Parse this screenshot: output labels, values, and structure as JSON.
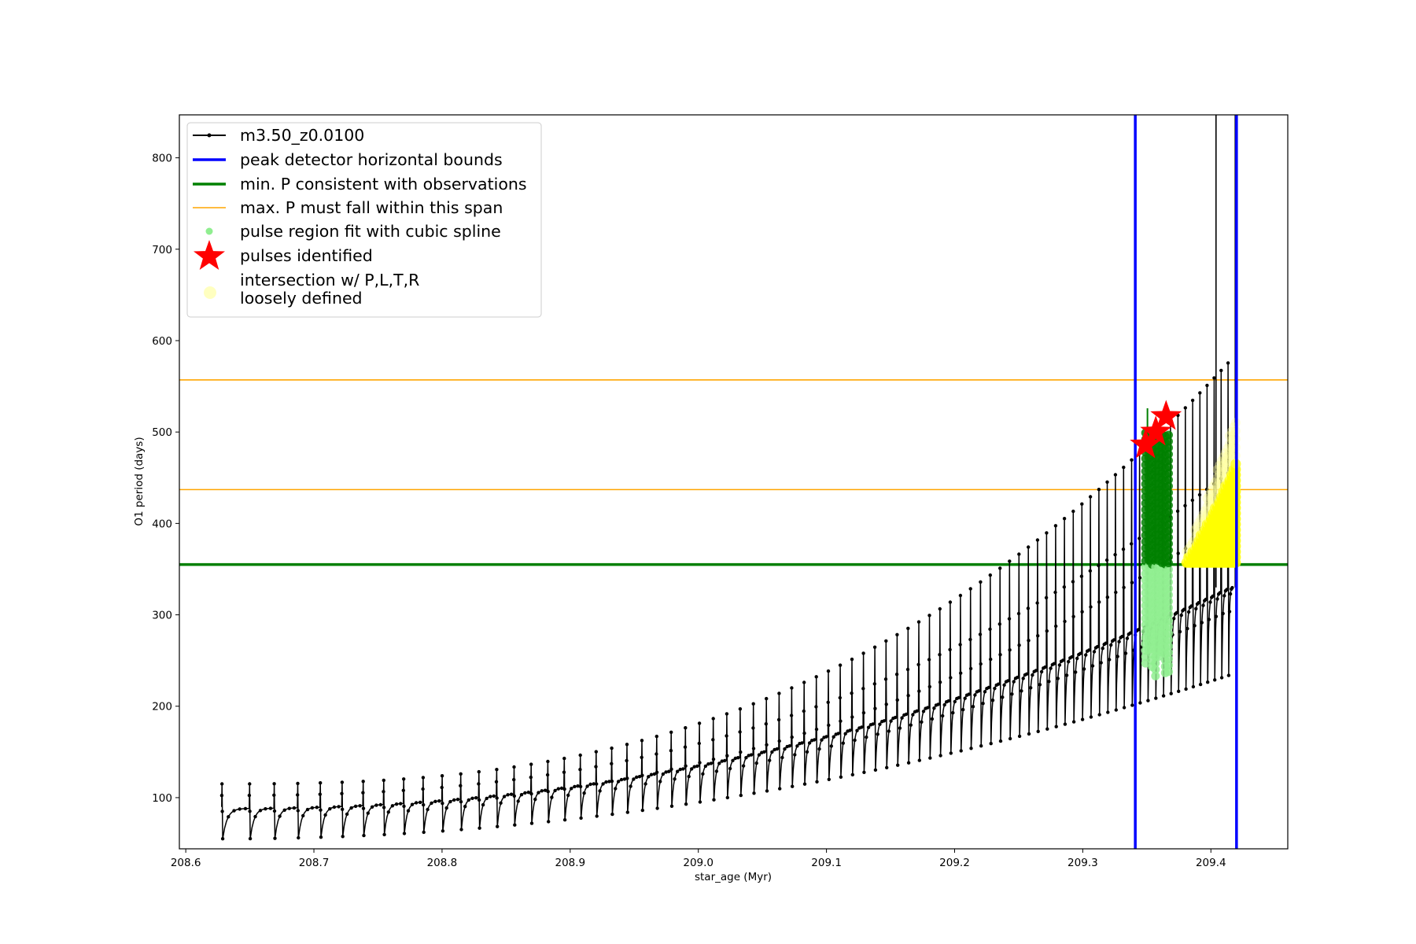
{
  "chart_data": {
    "type": "line",
    "title": "",
    "xlabel": "star_age (Myr)",
    "ylabel": "O1 period (days)",
    "xlim": [
      208.595,
      209.46
    ],
    "ylim": [
      44,
      847
    ],
    "xticks": [
      208.6,
      208.7,
      208.8,
      208.9,
      209.0,
      209.1,
      209.2,
      209.3,
      209.4
    ],
    "xtick_labels": [
      "208.6",
      "208.7",
      "208.8",
      "208.9",
      "209.0",
      "209.1",
      "209.2",
      "209.3",
      "209.4"
    ],
    "yticks": [
      100,
      200,
      300,
      400,
      500,
      600,
      700,
      800
    ],
    "ytick_labels": [
      "100",
      "200",
      "300",
      "400",
      "500",
      "600",
      "700",
      "800"
    ],
    "grid": false,
    "legend_position": "top-left",
    "legend": [
      {
        "label": "m3.50_z0.0100",
        "kind": "line-marker",
        "color": "#000000"
      },
      {
        "label": "peak detector horizontal bounds",
        "kind": "line",
        "color": "#0000ff"
      },
      {
        "label": "min. P consistent with observations",
        "kind": "line",
        "color": "#008000"
      },
      {
        "label": "max. P must fall within this span",
        "kind": "thin-line",
        "color": "#ffa500"
      },
      {
        "label": "pulse region fit with cubic spline",
        "kind": "dot",
        "color": "#90ee90"
      },
      {
        "label": "pulses identified",
        "kind": "star",
        "color": "#ff0000"
      },
      {
        "label_lines": [
          "intersection w/ P,L,T,R",
          "loosely defined"
        ],
        "kind": "big-dot",
        "color": "#ffffc0"
      }
    ],
    "peak_detector_bounds_x": [
      209.341,
      209.42
    ],
    "min_period_line_y": 355,
    "max_period_span_y": [
      437,
      557
    ],
    "pulses_identified": [
      {
        "x": 209.349,
        "y": 486
      },
      {
        "x": 209.357,
        "y": 500
      },
      {
        "x": 209.365,
        "y": 517
      }
    ],
    "spline_region": {
      "x_range": [
        209.349,
        209.367
      ],
      "y_range": [
        237,
        500
      ]
    },
    "series": [
      {
        "name": "m3.50_z0.0100",
        "color": "#000000",
        "pulse_cycles": {
          "first_age": 208.628,
          "interval_myr": 0.0215,
          "interval_end_myr": 0.0053,
          "baseline_start_days": 88,
          "baseline_end_days": 330,
          "peak_start_days": 115,
          "peak_end_days": 580,
          "dip_start_days": 55,
          "dip_end_days": 235,
          "last_age": 209.416
        },
        "late_spikes": [
          {
            "x": 209.404,
            "y": 847
          },
          {
            "x": 209.419,
            "y": 847
          }
        ]
      }
    ],
    "colors": {
      "series": "#000000",
      "bounds": "#0000ff",
      "min_period": "#008000",
      "max_span": "#ffa500",
      "spline": "#90ee90",
      "spline_dark": "#008000",
      "pulses": "#ff0000",
      "intersection": "#ffff00"
    }
  }
}
